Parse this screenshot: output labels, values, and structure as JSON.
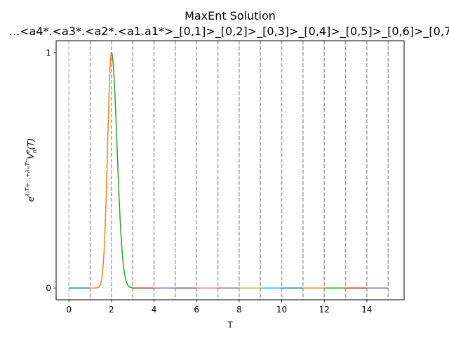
{
  "chart_data": {
    "type": "line",
    "title": "MaxEnt Solution",
    "subtitle": "...<a4*.<a3*.<a2*.<a1.a1*>_[0,1]>_[0,2]>_[0,3]>_[0,4]>_[0,5]>_[0,6]>_[0,7",
    "xlabel": "T",
    "ylabel_base": "e",
    "ylabel_exponent": "λ₁T+...+λₘTᵐ",
    "ylabel_tail": "V",
    "ylabel_tail_sup": "e",
    "ylabel_tail_sub": "n",
    "ylabel_arg": "(T)",
    "xlim": [
      -0.6,
      15.75
    ],
    "ylim": [
      -0.05,
      1.05
    ],
    "xticks": [
      0,
      2,
      4,
      6,
      8,
      10,
      12,
      14
    ],
    "yticks": [
      0,
      1
    ],
    "grid": false,
    "legend": "none",
    "vlines": {
      "x": [
        0,
        1,
        2,
        3,
        4,
        5,
        6,
        7,
        8,
        9,
        10,
        11,
        12,
        13,
        14,
        15
      ],
      "color": "#a0a0a0",
      "first_color": "#bdbdbd"
    },
    "series": [
      {
        "segment": [
          0,
          1
        ],
        "shape": "zero",
        "color": "#1f77b4"
      },
      {
        "segment": [
          1,
          2
        ],
        "shape": "rise",
        "color": "#ff7f0e",
        "peak_x": 2.0,
        "peak_y": 1.0
      },
      {
        "segment": [
          2,
          3
        ],
        "shape": "fall",
        "color": "#2ca02c",
        "peak_x": 2.0,
        "peak_y": 1.0
      },
      {
        "segment": [
          3,
          4
        ],
        "shape": "zero",
        "color": "#d62728"
      },
      {
        "segment": [
          4,
          5
        ],
        "shape": "zero",
        "color": "#9467bd"
      },
      {
        "segment": [
          5,
          6
        ],
        "shape": "zero",
        "color": "#8c564b"
      },
      {
        "segment": [
          6,
          7
        ],
        "shape": "zero",
        "color": "#e377c2"
      },
      {
        "segment": [
          7,
          8
        ],
        "shape": "zero",
        "color": "#7f7f7f"
      },
      {
        "segment": [
          8,
          9
        ],
        "shape": "zero",
        "color": "#bcbd22"
      },
      {
        "segment": [
          9,
          10
        ],
        "shape": "zero",
        "color": "#17becf"
      },
      {
        "segment": [
          10,
          11
        ],
        "shape": "zero",
        "color": "#1f77b4"
      },
      {
        "segment": [
          11,
          12
        ],
        "shape": "zero",
        "color": "#ff7f0e"
      },
      {
        "segment": [
          12,
          13
        ],
        "shape": "zero",
        "color": "#2ca02c"
      },
      {
        "segment": [
          13,
          14
        ],
        "shape": "zero",
        "color": "#d62728"
      },
      {
        "segment": [
          14,
          15
        ],
        "shape": "zero",
        "color": "#9467bd"
      }
    ]
  }
}
